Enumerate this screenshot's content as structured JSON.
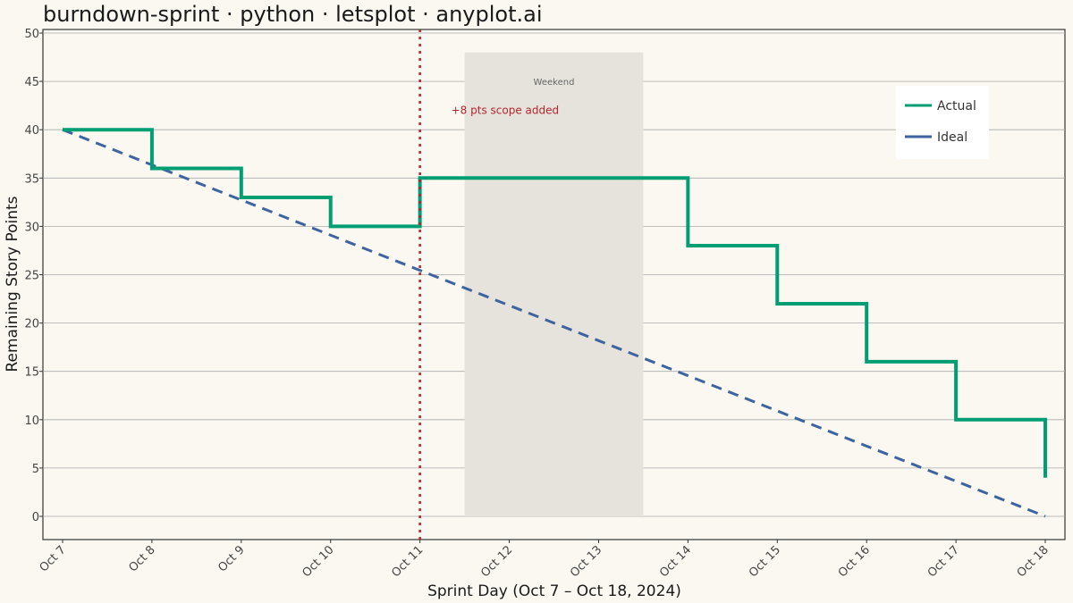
{
  "chart_data": {
    "type": "line",
    "title": "burndown-sprint · python · letsplot · anyplot.ai",
    "xlabel": "Sprint Day  (Oct 7 – Oct 18, 2024)",
    "ylabel": "Remaining Story Points",
    "categories": [
      "Oct 7",
      "Oct 8",
      "Oct 9",
      "Oct 10",
      "Oct 11",
      "Oct 12",
      "Oct 13",
      "Oct 14",
      "Oct 15",
      "Oct 16",
      "Oct 17",
      "Oct 18"
    ],
    "ylim": [
      0,
      50
    ],
    "yticks": [
      0,
      5,
      10,
      15,
      20,
      25,
      30,
      35,
      40,
      45,
      50
    ],
    "grid": "horizontal",
    "legend_position": "top-right",
    "series": [
      {
        "name": "Actual",
        "style": "step",
        "color": "#009E73",
        "values": [
          40,
          36,
          33,
          30,
          35,
          35,
          35,
          28,
          22,
          16,
          10,
          4
        ]
      },
      {
        "name": "Ideal",
        "style": "dashed",
        "color": "#3E64A0",
        "values": [
          40,
          36.36,
          32.73,
          29.09,
          25.45,
          21.82,
          18.18,
          14.55,
          10.91,
          7.27,
          3.64,
          0
        ]
      }
    ],
    "annotations": {
      "weekend": {
        "label": "Weekend",
        "x_start": 4.5,
        "x_end": 6.5,
        "y_start": 0,
        "y_end": 48,
        "color": "#E6E3DC"
      },
      "scope_change": {
        "label": "+8 pts scope added",
        "x": 4,
        "label_y": 42,
        "color": "#B0272D"
      }
    }
  }
}
